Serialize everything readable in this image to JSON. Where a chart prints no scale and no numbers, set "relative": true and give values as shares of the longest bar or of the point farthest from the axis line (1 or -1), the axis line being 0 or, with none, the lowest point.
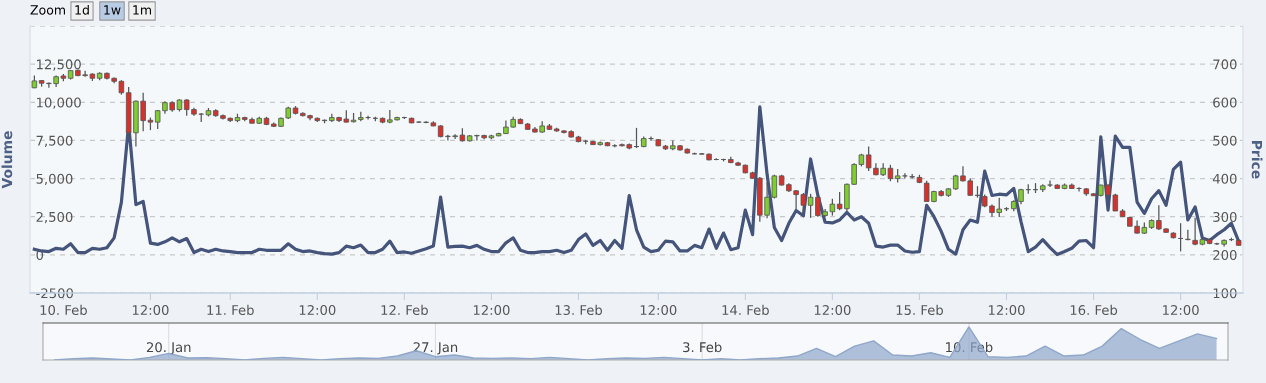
{
  "chart_data": [
    {
      "type": "candlestick",
      "ylabel": "Volume",
      "y2label": "Price",
      "annotations": [
        "Zoom",
        "1d",
        "1w",
        "1m"
      ],
      "categories": [
        null,
        null,
        null,
        null,
        "10. Feb",
        null,
        null,
        null,
        null,
        null,
        null,
        null,
        null,
        null,
        null,
        null,
        "12:00",
        null,
        null,
        null,
        null,
        null,
        null,
        null,
        null,
        null,
        null,
        "11. Feb",
        null,
        null,
        null,
        null,
        null,
        null,
        null,
        null,
        null,
        null,
        null,
        "12:00",
        null,
        null,
        null,
        null,
        null,
        null,
        null,
        null,
        null,
        null,
        null,
        "12. Feb",
        null,
        null,
        null,
        null,
        null,
        null,
        null,
        null,
        null,
        null,
        null,
        "12:00",
        null,
        null,
        null,
        null,
        null,
        null,
        null,
        null,
        null,
        null,
        null,
        "13. Feb",
        null,
        null,
        null,
        null,
        null,
        null,
        null,
        null,
        null,
        null,
        "12:00",
        null,
        null,
        null,
        null,
        null,
        null,
        null,
        null,
        null,
        null,
        null,
        "14. Feb",
        null,
        null,
        null,
        null,
        null,
        null,
        null,
        null,
        null,
        null,
        null,
        "12:00",
        null,
        null,
        null,
        null,
        null,
        null,
        null,
        null,
        null,
        null,
        null,
        "15. Feb",
        null,
        null,
        null,
        null,
        null,
        null,
        null,
        null,
        null,
        null,
        null,
        "12:00",
        null,
        null,
        null,
        null,
        null,
        null,
        null,
        null,
        null,
        null,
        null,
        "16. Feb",
        null,
        null,
        null,
        null,
        null,
        null,
        null,
        null,
        null,
        null,
        null,
        "12:00",
        null,
        null,
        null,
        null,
        null,
        null,
        null,
        null
      ],
      "series": [
        {
          "type": "line",
          "axis": "y",
          "color": "#44547a",
          "values": [
            365,
            255,
            215,
            430,
            365,
            725,
            150,
            150,
            430,
            365,
            470,
            1110,
            3460,
            8590,
            3290,
            3500,
            770,
            685,
            855,
            1110,
            855,
            1070,
            150,
            365,
            215,
            365,
            255,
            215,
            150,
            150,
            150,
            365,
            300,
            300,
            300,
            725,
            365,
            215,
            255,
            150,
            85,
            45,
            150,
            575,
            470,
            640,
            150,
            150,
            365,
            900,
            150,
            190,
            105,
            255,
            405,
            575,
            3780,
            510,
            555,
            575,
            470,
            620,
            365,
            215,
            215,
            790,
            1110,
            300,
            150,
            150,
            215,
            215,
            300,
            150,
            300,
            1000,
            1370,
            620,
            940,
            300,
            940,
            430,
            3890,
            1645,
            510,
            215,
            300,
            900,
            855,
            255,
            255,
            620,
            470,
            1690,
            430,
            1430,
            340,
            470,
            2930,
            1325,
            9700,
            5280,
            1795,
            940,
            2070,
            2905,
            2565,
            6285,
            3890,
            2135,
            2095,
            2285,
            2780,
            2285,
            2500,
            2070,
            575,
            510,
            640,
            640,
            255,
            170,
            215,
            3250,
            2500,
            1540,
            365,
            45,
            1645,
            2285,
            2135,
            5490,
            3890,
            3975,
            3930,
            4360,
            2180,
            215,
            510,
            1000,
            470,
            20,
            215,
            430,
            900,
            940,
            470,
            7735,
            2930,
            7780,
            7050,
            7050,
            3460,
            2715,
            3675,
            4210,
            3250,
            5600,
            6070,
            2285,
            3140,
            1110,
            940,
            1325,
            1645,
            2070,
            900
          ]
        },
        {
          "type": "candlestick",
          "axis": "y2",
          "ohlc": [
            [
              638,
              670,
              637,
              656
            ],
            [
              657,
              658,
              641,
              650
            ],
            [
              650,
              652,
              638,
              649
            ],
            [
              649,
              670,
              640,
              667
            ],
            [
              669,
              674,
              655,
              663
            ],
            [
              663,
              684,
              660,
              683
            ],
            [
              684,
              686,
              668,
              670
            ],
            [
              672,
              683,
              667,
              670
            ],
            [
              674,
              676,
              656,
              663
            ],
            [
              663,
              679,
              658,
              676
            ],
            [
              676,
              678,
              660,
              663
            ],
            [
              663,
              665,
              650,
              655
            ],
            [
              655,
              658,
              620,
              625
            ],
            [
              625,
              640,
              505,
              520
            ],
            [
              520,
              605,
              484,
              603
            ],
            [
              603,
              625,
              524,
              552
            ],
            [
              553,
              560,
              527,
              548
            ],
            [
              548,
              580,
              530,
              578
            ],
            [
              578,
              603,
              570,
              599
            ],
            [
              599,
              603,
              575,
              580
            ],
            [
              581,
              608,
              576,
              606
            ],
            [
              606,
              608,
              565,
              581
            ],
            [
              581,
              586,
              565,
              569
            ],
            [
              569,
              571,
              548,
              569
            ],
            [
              567,
              585,
              563,
              578
            ],
            [
              578,
              582,
              562,
              565
            ],
            [
              565,
              568,
              555,
              558
            ],
            [
              558,
              560,
              548,
              552
            ],
            [
              552,
              570,
              548,
              560
            ],
            [
              560,
              562,
              550,
              555
            ],
            [
              555,
              560,
              545,
              545
            ],
            [
              545,
              562,
              543,
              558
            ],
            [
              558,
              562,
              540,
              542
            ],
            [
              543,
              547,
              535,
              537
            ],
            [
              537,
              560,
              535,
              558
            ],
            [
              559,
              588,
              556,
              585
            ],
            [
              585,
              590,
              568,
              571
            ],
            [
              571,
              574,
              563,
              565
            ],
            [
              565,
              567,
              553,
              559
            ],
            [
              558,
              560,
              548,
              552
            ],
            [
              553,
              555,
              545,
              552
            ],
            [
              552,
              570,
              548,
              560
            ],
            [
              560,
              562,
              548,
              552
            ],
            [
              556,
              579,
              547,
              548
            ],
            [
              549,
              572,
              547,
              553
            ],
            [
              555,
              575,
              550,
              560
            ],
            [
              560,
              565,
              555,
              560
            ],
            [
              558,
              562,
              550,
              558
            ],
            [
              558,
              560,
              545,
              548
            ],
            [
              548,
              580,
              545,
              554
            ],
            [
              554,
              562,
              552,
              560
            ],
            [
              560,
              562,
              556,
              560
            ],
            [
              558,
              560,
              545,
              546
            ],
            [
              548,
              550,
              546,
              548
            ],
            [
              548,
              550,
              545,
              547
            ],
            [
              546,
              550,
              537,
              538
            ],
            [
              538,
              540,
              508,
              510
            ],
            [
              511,
              515,
              500,
              510
            ],
            [
              510,
              516,
              504,
              512
            ],
            [
              514,
              532,
              497,
              499
            ],
            [
              499,
              514,
              497,
              512
            ],
            [
              512,
              515,
              500,
              513
            ],
            [
              513,
              515,
              503,
              507
            ],
            [
              507,
              515,
              503,
              512
            ],
            [
              512,
              520,
              511,
              518
            ],
            [
              518,
              552,
              517,
              535
            ],
            [
              535,
              562,
              533,
              555
            ],
            [
              555,
              558,
              543,
              544
            ],
            [
              543,
              546,
              528,
              529
            ],
            [
              530,
              535,
              521,
              522
            ],
            [
              522,
              550,
              520,
              538
            ],
            [
              538,
              543,
              528,
              529
            ],
            [
              530,
              533,
              523,
              525
            ],
            [
              525,
              527,
              518,
              521
            ],
            [
              523,
              527,
              508,
              509
            ],
            [
              509,
              512,
              495,
              497
            ],
            [
              498,
              502,
              490,
              498
            ],
            [
              497,
              499,
              488,
              489
            ],
            [
              489,
              497,
              487,
              494
            ],
            [
              494,
              496,
              485,
              486
            ],
            [
              486,
              490,
              482,
              486
            ],
            [
              489,
              492,
              484,
              486
            ],
            [
              489,
              492,
              477,
              480
            ],
            [
              484,
              533,
              480,
              484
            ],
            [
              484,
              510,
              482,
              505
            ],
            [
              505,
              510,
              500,
              505
            ],
            [
              502,
              504,
              485,
              486
            ],
            [
              485,
              488,
              475,
              478
            ],
            [
              478,
              500,
              474,
              486
            ],
            [
              486,
              488,
              473,
              475
            ],
            [
              477,
              479,
              466,
              467
            ],
            [
              465,
              468,
              463,
              465
            ],
            [
              465,
              467,
              463,
              464
            ],
            [
              464,
              466,
              448,
              449
            ],
            [
              450,
              453,
              448,
              450
            ],
            [
              450,
              452,
              445,
              450
            ],
            [
              450,
              457,
              440,
              442
            ],
            [
              441,
              444,
              433,
              435
            ],
            [
              435,
              437,
              414,
              415
            ],
            [
              415,
              418,
              400,
              401
            ],
            [
              401,
              404,
              287,
              304
            ],
            [
              304,
              390,
              296,
              351
            ],
            [
              351,
              410,
              348,
              407
            ],
            [
              407,
              410,
              382,
              383
            ],
            [
              384,
              388,
              365,
              368
            ],
            [
              368,
              370,
              320,
              358
            ],
            [
              358,
              362,
              310,
              330
            ],
            [
              330,
              360,
              297,
              351
            ],
            [
              351,
              355,
              300,
              303
            ],
            [
              303,
              320,
              300,
              313
            ],
            [
              313,
              347,
              303,
              333
            ],
            [
              333,
              365,
              317,
              321
            ],
            [
              321,
              387,
              314,
              385
            ],
            [
              385,
              440,
              383,
              437
            ],
            [
              437,
              465,
              432,
              462
            ],
            [
              462,
              484,
              420,
              428
            ],
            [
              427,
              440,
              409,
              410
            ],
            [
              410,
              440,
              407,
              427
            ],
            [
              427,
              436,
              393,
              400
            ],
            [
              400,
              425,
              390,
              407
            ],
            [
              407,
              414,
              400,
              407
            ],
            [
              405,
              412,
              400,
              404
            ],
            [
              403,
              410,
              388,
              390
            ],
            [
              388,
              394,
              340,
              340
            ],
            [
              340,
              368,
              338,
              366
            ],
            [
              366,
              370,
              353,
              356
            ],
            [
              356,
              375,
              352,
              373
            ],
            [
              373,
              410,
              370,
              407
            ],
            [
              407,
              432,
              392,
              394
            ],
            [
              394,
              400,
              355,
              356
            ],
            [
              356,
              380,
              350,
              356
            ],
            [
              353,
              358,
              325,
              328
            ],
            [
              328,
              332,
              300,
              311
            ],
            [
              311,
              350,
              299,
              320
            ],
            [
              321,
              325,
              315,
              321
            ],
            [
              321,
              343,
              314,
              340
            ],
            [
              340,
              373,
              333,
              371
            ],
            [
              371,
              385,
              360,
              371
            ],
            [
              371,
              388,
              362,
              371
            ],
            [
              371,
              385,
              365,
              381
            ],
            [
              383,
              395,
              378,
              383
            ],
            [
              383,
              385,
              374,
              374
            ],
            [
              374,
              387,
              372,
              383
            ],
            [
              383,
              387,
              373,
              374
            ],
            [
              374,
              377,
              366,
              374
            ],
            [
              373,
              375,
              355,
              360
            ],
            [
              360,
              362,
              355,
              355
            ],
            [
              356,
              384,
              353,
              383
            ],
            [
              383,
              385,
              356,
              357
            ],
            [
              357,
              360,
              315,
              315
            ],
            [
              315,
              320,
              300,
              300
            ],
            [
              298,
              300,
              275,
              275
            ],
            [
              275,
              290,
              256,
              257
            ],
            [
              257,
              285,
              255,
              272
            ],
            [
              272,
              293,
              268,
              290
            ],
            [
              290,
              330,
              265,
              268
            ],
            [
              268,
              270,
              258,
              259
            ],
            [
              257,
              259,
              243,
              245
            ],
            [
              243,
              283,
              209,
              243
            ],
            [
              241,
              266,
              238,
              240
            ],
            [
              238,
              297,
              225,
              228
            ],
            [
              228,
              242,
              225,
              240
            ],
            [
              240,
              242,
              228,
              230
            ],
            [
              229,
              232,
              226,
              229
            ],
            [
              228,
              240,
              222,
              238
            ],
            [
              240,
              245,
              236,
              240
            ],
            [
              238,
              240,
              224,
              225
            ]
          ]
        }
      ],
      "ylim": [
        -2500,
        15000
      ],
      "yticks": [
        {
          "value": -2500,
          "label": "-2500"
        },
        0,
        {
          "value": 2500,
          "label": "2,500"
        },
        {
          "value": 5000,
          "label": "5,000"
        },
        {
          "value": 7500,
          "label": "7,500"
        },
        {
          "value": 10000,
          "label": "10,000"
        },
        {
          "value": 12500,
          "label": "12,500"
        },
        {
          "value": 15000,
          "label": null
        }
      ],
      "y2lim": [
        100,
        800
      ],
      "y2ticks": [
        100,
        200,
        300,
        400,
        500,
        600,
        700,
        {
          "value": 800,
          "label": null
        }
      ],
      "grid": "y"
    },
    {
      "type": "area",
      "relative": true,
      "color": "#8fa7ca",
      "tick_labels": "x",
      "grid": "x",
      "categories": [
        null,
        null,
        null,
        null,
        null,
        null,
        "20. Jan",
        null,
        null,
        null,
        null,
        null,
        null,
        null,
        null,
        null,
        null,
        null,
        null,
        null,
        "27. Jan",
        null,
        null,
        null,
        null,
        null,
        null,
        null,
        null,
        null,
        null,
        null,
        null,
        null,
        "3. Feb",
        null,
        null,
        null,
        null,
        null,
        null,
        null,
        null,
        null,
        null,
        null,
        null,
        null,
        "10. Feb",
        null,
        null,
        null,
        null,
        null,
        null,
        null,
        null,
        null,
        null,
        null,
        null,
        null
      ],
      "values": [
        0,
        0.04,
        0.06,
        0.03,
        0,
        0.08,
        0.2,
        0.06,
        0.07,
        0.04,
        0,
        0.05,
        0.08,
        0.04,
        0,
        0.04,
        0.06,
        0.05,
        0.12,
        0.28,
        0.1,
        0.15,
        0.06,
        0.05,
        0.06,
        0.04,
        0.08,
        0.04,
        0,
        0.04,
        0.06,
        0.05,
        0.08,
        0.04,
        0,
        0.04,
        0,
        0.04,
        0.06,
        0.12,
        0.35,
        0.1,
        0.42,
        0.58,
        0.15,
        0.12,
        0.22,
        0.08,
        1,
        0.1,
        0.08,
        0.12,
        0.42,
        0.12,
        0.15,
        0.42,
        0.95,
        0.62,
        0.35,
        0.57,
        0.79,
        0.65
      ]
    }
  ]
}
